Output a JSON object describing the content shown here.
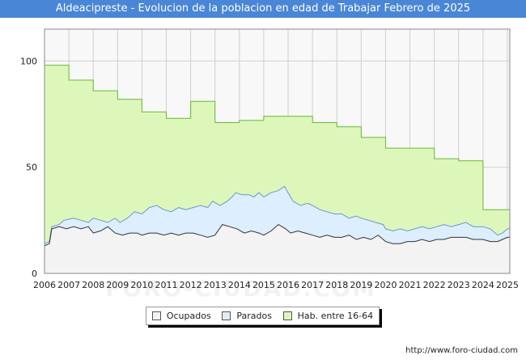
{
  "header": {
    "title": "Aldeacipreste - Evolucion de la poblacion en edad de Trabajar Febrero de 2025"
  },
  "footer": {
    "credit": "http://www.foro-ciudad.com",
    "watermark": "FORO-CIUDAD.COM"
  },
  "colors": {
    "title_bg": "#4a86d6",
    "ocupados_fill": "#f3f3f3",
    "ocupados_line": "#333333",
    "parados_fill": "#ddeeff",
    "parados_line": "#6699cc",
    "hab_fill": "#ddf7bb",
    "hab_line": "#66bb33",
    "plot_bg": "#f8f8f8"
  },
  "chart_data": {
    "type": "area",
    "title": "Aldeacipreste - Evolucion de la poblacion en edad de Trabajar Febrero de 2025",
    "x_ticks": [
      "2006",
      "2007",
      "2008",
      "2009",
      "2010",
      "2011",
      "2012",
      "2013",
      "2014",
      "2015",
      "2016",
      "2017",
      "2018",
      "2019",
      "2020",
      "2021",
      "2022",
      "2023",
      "2024",
      "2025"
    ],
    "y_ticks": [
      0,
      50,
      100
    ],
    "xlim": [
      2006,
      2025.1
    ],
    "ylim": [
      0,
      115
    ],
    "grid": true,
    "legend": {
      "position": "bottom-center",
      "entries": [
        "Ocupados",
        "Parados",
        "Hab. entre 16-64"
      ]
    },
    "series": [
      {
        "name": "Hab. entre 16-64",
        "step": true,
        "points": [
          [
            2006,
            98
          ],
          [
            2007,
            91
          ],
          [
            2008,
            86
          ],
          [
            2009,
            82
          ],
          [
            2010,
            76
          ],
          [
            2011,
            73
          ],
          [
            2012,
            81
          ],
          [
            2013,
            71
          ],
          [
            2014,
            72
          ],
          [
            2015,
            74
          ],
          [
            2016,
            74
          ],
          [
            2017,
            71
          ],
          [
            2018,
            69
          ],
          [
            2019,
            64
          ],
          [
            2020,
            59
          ],
          [
            2021,
            59
          ],
          [
            2022,
            54
          ],
          [
            2023,
            53
          ],
          [
            2024,
            30
          ],
          [
            2025.1,
            30
          ]
        ]
      },
      {
        "name": "Parados",
        "points": [
          [
            2006,
            14
          ],
          [
            2006.2,
            15
          ],
          [
            2006.3,
            22
          ],
          [
            2006.6,
            23
          ],
          [
            2006.8,
            25
          ],
          [
            2007.2,
            26
          ],
          [
            2007.5,
            25
          ],
          [
            2007.8,
            24
          ],
          [
            2008,
            26
          ],
          [
            2008.3,
            25
          ],
          [
            2008.6,
            24
          ],
          [
            2008.9,
            26
          ],
          [
            2009.1,
            24
          ],
          [
            2009.4,
            26
          ],
          [
            2009.7,
            29
          ],
          [
            2010,
            28
          ],
          [
            2010.3,
            31
          ],
          [
            2010.6,
            32
          ],
          [
            2010.9,
            30
          ],
          [
            2011.2,
            29
          ],
          [
            2011.5,
            31
          ],
          [
            2011.8,
            30
          ],
          [
            2012.1,
            31
          ],
          [
            2012.4,
            32
          ],
          [
            2012.7,
            31
          ],
          [
            2012.9,
            34
          ],
          [
            2013.2,
            32
          ],
          [
            2013.5,
            34
          ],
          [
            2013.7,
            36
          ],
          [
            2013.85,
            38
          ],
          [
            2014.1,
            37
          ],
          [
            2014.4,
            37
          ],
          [
            2014.6,
            36
          ],
          [
            2014.8,
            38
          ],
          [
            2015,
            36
          ],
          [
            2015.3,
            38
          ],
          [
            2015.6,
            39
          ],
          [
            2015.85,
            41
          ],
          [
            2016,
            38
          ],
          [
            2016.2,
            34
          ],
          [
            2016.5,
            32
          ],
          [
            2016.8,
            33
          ],
          [
            2017,
            32
          ],
          [
            2017.3,
            30
          ],
          [
            2017.6,
            29
          ],
          [
            2017.9,
            28
          ],
          [
            2018.2,
            28
          ],
          [
            2018.5,
            26
          ],
          [
            2018.8,
            27
          ],
          [
            2019,
            26
          ],
          [
            2019.3,
            25
          ],
          [
            2019.6,
            24
          ],
          [
            2019.9,
            23
          ],
          [
            2020,
            21
          ],
          [
            2020.3,
            20
          ],
          [
            2020.6,
            21
          ],
          [
            2020.9,
            20
          ],
          [
            2021.2,
            21
          ],
          [
            2021.5,
            22
          ],
          [
            2021.8,
            21
          ],
          [
            2022.1,
            22
          ],
          [
            2022.4,
            23
          ],
          [
            2022.7,
            22
          ],
          [
            2023,
            23
          ],
          [
            2023.3,
            24
          ],
          [
            2023.6,
            22
          ],
          [
            2024,
            22
          ],
          [
            2024.3,
            21
          ],
          [
            2024.6,
            18
          ],
          [
            2024.8,
            19
          ],
          [
            2025,
            21
          ],
          [
            2025.1,
            21
          ]
        ]
      },
      {
        "name": "Ocupados",
        "points": [
          [
            2006,
            13
          ],
          [
            2006.2,
            14
          ],
          [
            2006.3,
            21
          ],
          [
            2006.6,
            22
          ],
          [
            2006.9,
            21
          ],
          [
            2007.2,
            22
          ],
          [
            2007.5,
            21
          ],
          [
            2007.8,
            22
          ],
          [
            2008,
            19
          ],
          [
            2008.3,
            20
          ],
          [
            2008.6,
            22
          ],
          [
            2008.9,
            19
          ],
          [
            2009.2,
            18
          ],
          [
            2009.5,
            19
          ],
          [
            2009.8,
            19
          ],
          [
            2010,
            18
          ],
          [
            2010.3,
            19
          ],
          [
            2010.6,
            19
          ],
          [
            2010.9,
            18
          ],
          [
            2011.2,
            19
          ],
          [
            2011.5,
            18
          ],
          [
            2011.8,
            19
          ],
          [
            2012.1,
            19
          ],
          [
            2012.4,
            18
          ],
          [
            2012.7,
            17
          ],
          [
            2013,
            18
          ],
          [
            2013.3,
            23
          ],
          [
            2013.6,
            22
          ],
          [
            2013.9,
            21
          ],
          [
            2014.2,
            19
          ],
          [
            2014.5,
            20
          ],
          [
            2014.8,
            19
          ],
          [
            2015,
            18
          ],
          [
            2015.3,
            20
          ],
          [
            2015.6,
            23
          ],
          [
            2015.9,
            21
          ],
          [
            2016.1,
            19
          ],
          [
            2016.4,
            20
          ],
          [
            2016.7,
            19
          ],
          [
            2017,
            18
          ],
          [
            2017.3,
            17
          ],
          [
            2017.6,
            18
          ],
          [
            2017.9,
            17
          ],
          [
            2018.2,
            17
          ],
          [
            2018.5,
            18
          ],
          [
            2018.8,
            16
          ],
          [
            2019.1,
            17
          ],
          [
            2019.4,
            16
          ],
          [
            2019.7,
            18
          ],
          [
            2019.9,
            16
          ],
          [
            2020,
            15
          ],
          [
            2020.3,
            14
          ],
          [
            2020.6,
            14
          ],
          [
            2020.9,
            15
          ],
          [
            2021.2,
            15
          ],
          [
            2021.5,
            16
          ],
          [
            2021.8,
            15
          ],
          [
            2022.1,
            16
          ],
          [
            2022.4,
            16
          ],
          [
            2022.7,
            17
          ],
          [
            2023,
            17
          ],
          [
            2023.3,
            17
          ],
          [
            2023.6,
            16
          ],
          [
            2024,
            16
          ],
          [
            2024.3,
            15
          ],
          [
            2024.6,
            15
          ],
          [
            2024.8,
            16
          ],
          [
            2025,
            17
          ],
          [
            2025.1,
            17
          ]
        ]
      }
    ]
  }
}
